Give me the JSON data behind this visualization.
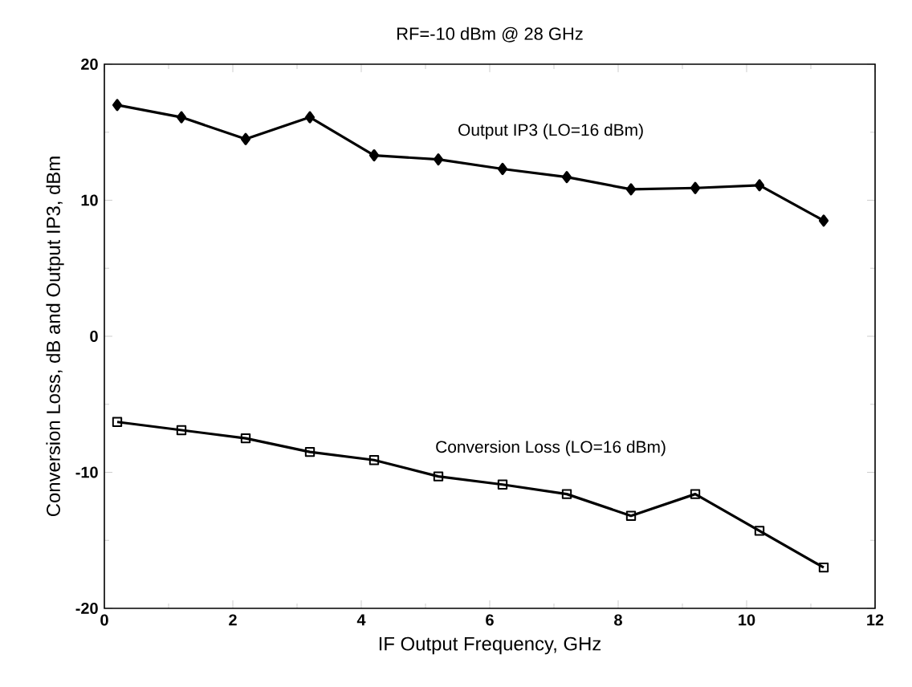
{
  "chart_data": {
    "type": "line",
    "title": "RF=-10 dBm @ 28 GHz",
    "xlabel": "IF Output Frequency, GHz",
    "ylabel": "Conversion Loss, dB and Output IP3, dBm",
    "x": [
      0.2,
      1.2,
      2.2,
      3.2,
      4.2,
      5.2,
      6.2,
      7.2,
      8.2,
      9.2,
      10.2,
      11.2
    ],
    "series": [
      {
        "name": "Output IP3 (LO=16 dBm)",
        "color": "#000000",
        "marker": "diamond",
        "values": [
          17,
          16.1,
          14.5,
          16.1,
          13.3,
          13,
          12.3,
          11.7,
          10.8,
          10.9,
          11.1,
          8.5
        ]
      },
      {
        "name": "Conversion Loss (LO=16 dBm)",
        "color": "#000000",
        "marker": "square",
        "values": [
          -6.3,
          -6.9,
          -7.5,
          -8.5,
          -9.1,
          -10.3,
          -10.9,
          -11.6,
          -13.2,
          -11.6,
          -14.3,
          -17
        ]
      }
    ],
    "xlim": [
      0,
      12
    ],
    "ylim": [
      -20,
      20
    ],
    "xticks": [
      0,
      2,
      4,
      6,
      8,
      10,
      12
    ],
    "yticks": [
      -20,
      -10,
      0,
      10,
      20
    ],
    "grid": false,
    "line_style": "solid"
  }
}
